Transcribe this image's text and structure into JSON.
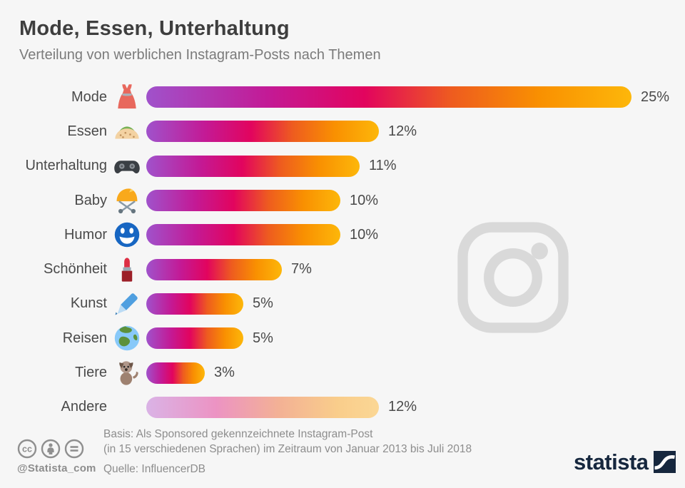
{
  "chart_data": {
    "type": "bar",
    "orientation": "horizontal",
    "title": "Mode, Essen, Unterhaltung",
    "subtitle": "Verteilung von werblichen Instagram-Posts nach Themen",
    "unit": "%",
    "categories": [
      "Mode",
      "Essen",
      "Unterhaltung",
      "Baby",
      "Humor",
      "Schönheit",
      "Kunst",
      "Reisen",
      "Tiere",
      "Andere"
    ],
    "values": [
      25,
      12,
      11,
      10,
      10,
      7,
      5,
      5,
      3,
      12
    ],
    "value_labels": [
      "25%",
      "12%",
      "11%",
      "10%",
      "10%",
      "7%",
      "5%",
      "5%",
      "3%",
      "12%"
    ],
    "icons": [
      "dress-icon",
      "taco-icon",
      "game-controller-icon",
      "baby-stroller-icon",
      "smiley-icon",
      "lipstick-icon",
      "crayon-icon",
      "globe-icon",
      "dog-icon",
      null
    ],
    "muted_bars": [
      "Andere"
    ],
    "xlim": [
      0,
      25
    ],
    "grid": false,
    "legend": false,
    "colors": {
      "bar_gradient": [
        "#a052cb",
        "#c31a96",
        "#e2045e",
        "#ee5c1f",
        "#f99001",
        "#fdb70a"
      ],
      "muted_bar_gradient": [
        "#dab3e6",
        "#ec93c3",
        "#f3b195",
        "#f9cd8b",
        "#fbd795"
      ],
      "category_text": "#4a4a4a",
      "value_text": "#4a4a4a"
    }
  },
  "watermark": {
    "name": "instagram-logo",
    "color": "#d9d9d9"
  },
  "footer": {
    "basis_line1": "Basis: Als Sponsored gekennzeichnete Instagram-Post",
    "basis_line2": "(in 15 verschiedenen Sprachen) im Zeitraum von Januar 2013 bis Juli 2018",
    "source": "Quelle: InfluencerDB",
    "handle": "@Statista_com",
    "brand": "statista",
    "license_icons": [
      "cc-icon",
      "attribution-icon",
      "no-derivatives-icon"
    ]
  }
}
